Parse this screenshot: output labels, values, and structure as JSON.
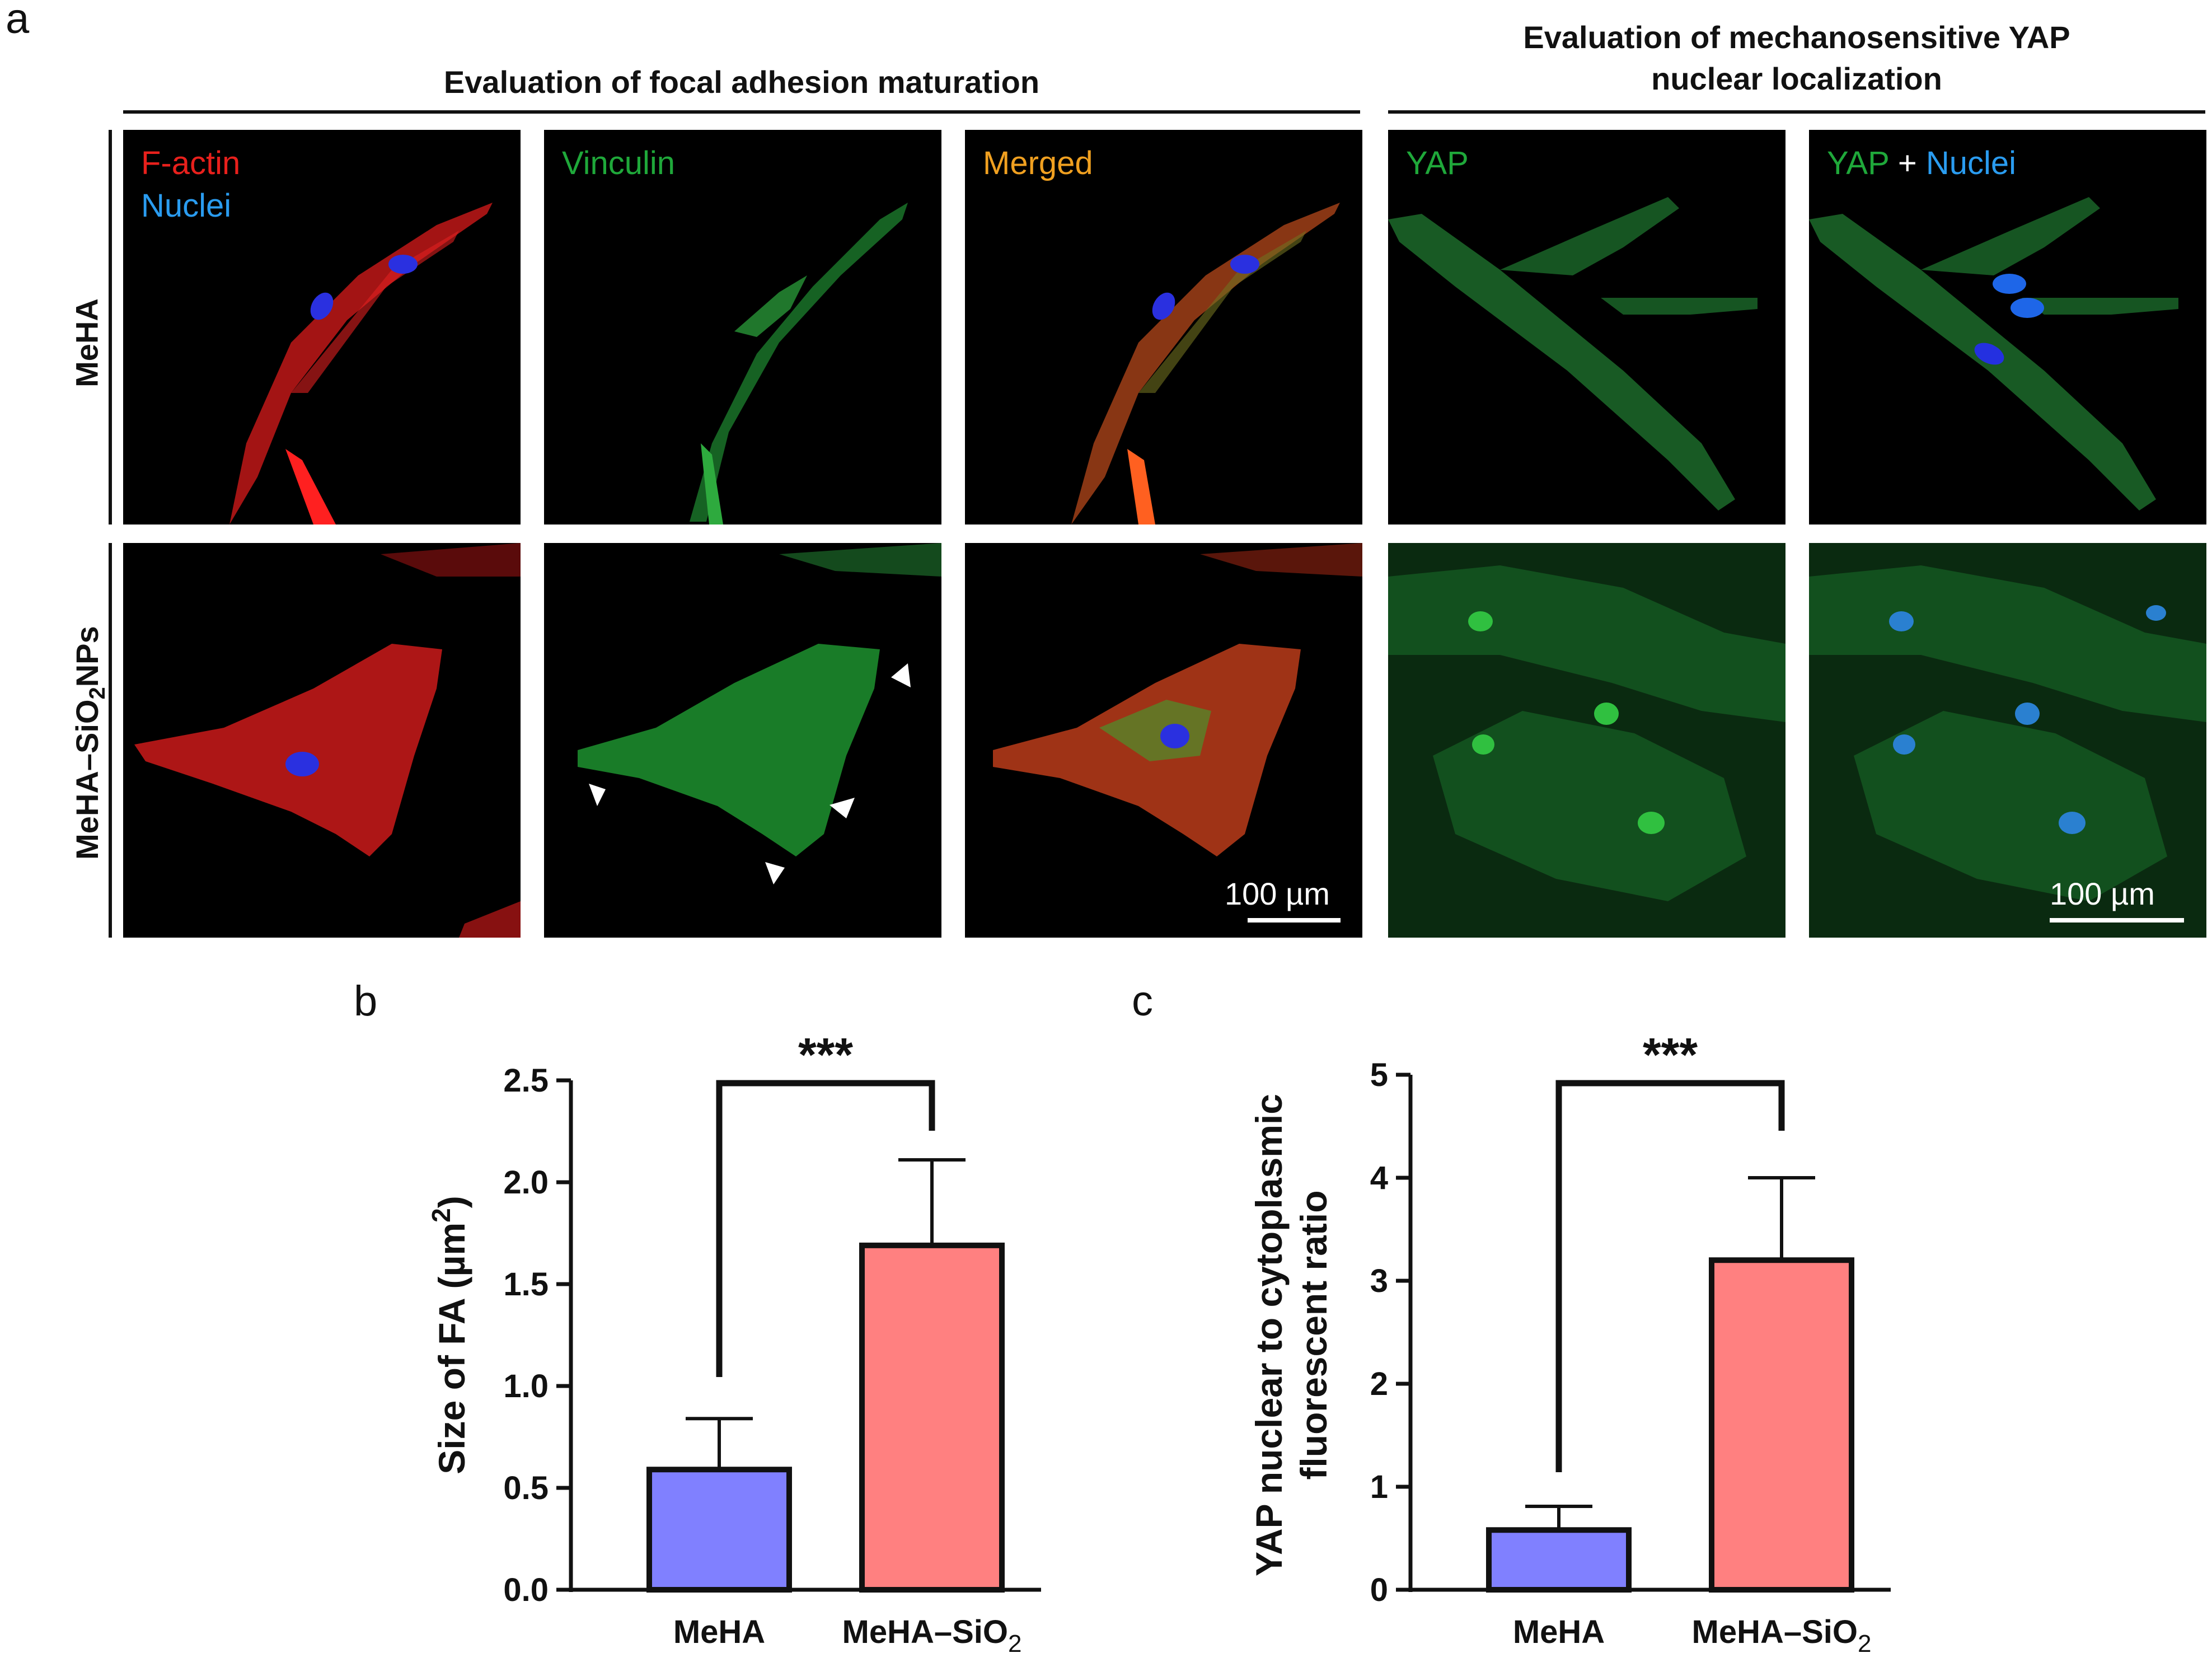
{
  "panel_a": {
    "letter": "a",
    "section_left_title": "Evaluation of focal adhesion maturation",
    "section_right_title_line1": "Evaluation of mechanosensitive YAP",
    "section_right_title_line2": "nuclear localization",
    "row_labels": {
      "row1": "MeHA",
      "row2_prefix": "MeHA–SiO",
      "row2_sub": "2",
      "row2_suffix": "NPs"
    },
    "channel_labels": {
      "factin": "F-actin",
      "nuclei": "Nuclei",
      "vinculin": "Vinculin",
      "merged": "Merged",
      "yap": "YAP",
      "yap2": "YAP",
      "plus": " + ",
      "nuclei2": "Nuclei"
    },
    "scale_bar_label": "100 µm",
    "colors": {
      "factin": "#e8201c",
      "nuclei": "#2a9cf0",
      "vinculin": "#1fa83a",
      "merged": "#f0a020",
      "yap": "#1fa83a",
      "nucleus_blue": "#2430e0"
    }
  },
  "chart_data": [
    {
      "panel": "b",
      "type": "bar",
      "categories": [
        "MeHA",
        "MeHA–SiO2"
      ],
      "category_labels": [
        {
          "main": "MeHA",
          "sub": ""
        },
        {
          "main": "MeHA–SiO",
          "sub": "2"
        }
      ],
      "values": [
        0.59,
        1.69
      ],
      "error_upper": [
        0.84,
        2.11
      ],
      "bar_colors": [
        "#8080ff",
        "#ff8080"
      ],
      "ylabel_prefix": "Size of FA (µm",
      "ylabel_sup": "2",
      "ylabel_suffix": ")",
      "ylim": [
        0,
        2.5
      ],
      "yticks": [
        "0.0",
        "0.5",
        "1.0",
        "1.5",
        "2.0",
        "2.5"
      ],
      "ytick_values": [
        0,
        0.5,
        1.0,
        1.5,
        2.0,
        2.5
      ],
      "significance": "***"
    },
    {
      "panel": "c",
      "type": "bar",
      "categories": [
        "MeHA",
        "MeHA–SiO2"
      ],
      "category_labels": [
        {
          "main": "MeHA",
          "sub": ""
        },
        {
          "main": "MeHA–SiO",
          "sub": "2"
        }
      ],
      "values": [
        0.58,
        3.2
      ],
      "error_upper": [
        0.81,
        4.0
      ],
      "bar_colors": [
        "#8080ff",
        "#ff8080"
      ],
      "ylabel_line1": "YAP nuclear to cytoplasmic",
      "ylabel_line2": "fluorescent ratio",
      "ylim": [
        0,
        5
      ],
      "yticks": [
        "0",
        "1",
        "2",
        "3",
        "4",
        "5"
      ],
      "ytick_values": [
        0,
        1,
        2,
        3,
        4,
        5
      ],
      "significance": "***"
    }
  ]
}
